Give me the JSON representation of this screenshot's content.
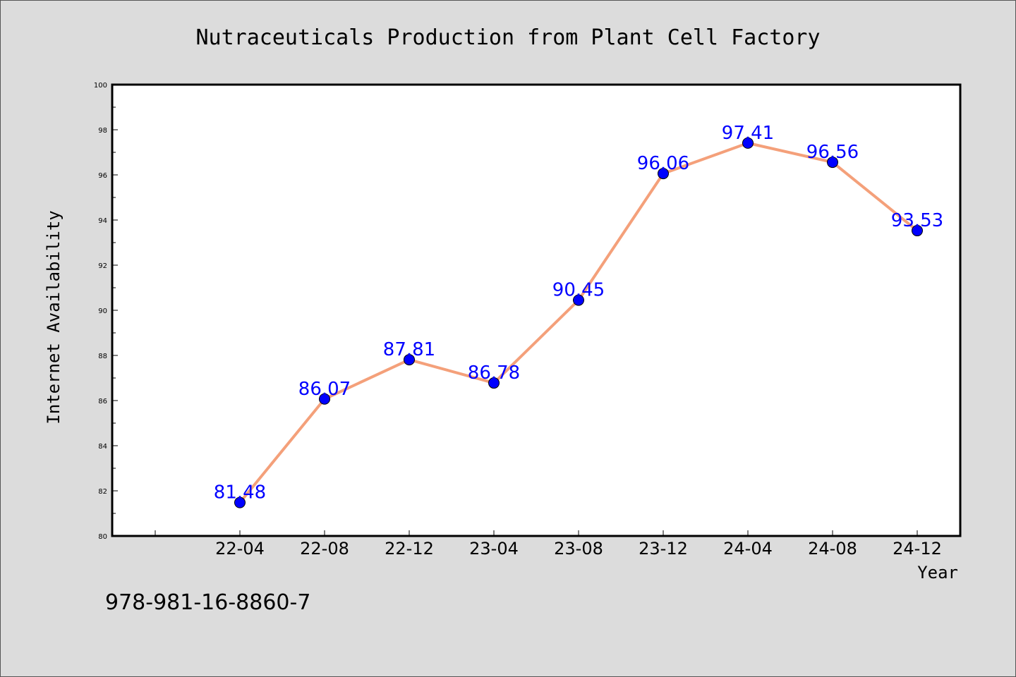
{
  "chart_data": {
    "type": "line",
    "title": "Nutraceuticals Production from Plant Cell Factory",
    "xlabel": "Year",
    "ylabel": "Internet Availability",
    "categories": [
      "22-04",
      "22-08",
      "22-12",
      "23-04",
      "23-08",
      "23-12",
      "24-04",
      "24-08",
      "24-12"
    ],
    "series": [
      {
        "values": [
          81.48,
          86.07,
          87.81,
          86.78,
          90.45,
          96.06,
          97.41,
          96.56,
          93.53
        ]
      }
    ],
    "data_labels": [
      "81.48",
      "86.07",
      "87.81",
      "86.78",
      "90.45",
      "96.06",
      "97.41",
      "96.56",
      "93.53"
    ],
    "ylim": [
      80,
      100
    ],
    "yticks": [
      80,
      82,
      84,
      86,
      88,
      90,
      92,
      94,
      96,
      98,
      100
    ],
    "grid": false,
    "line_color": "#f4a07a",
    "marker_color": "#0000ff",
    "label_color": "#0000ff",
    "background": "#dcdcdc",
    "plot_background": "#ffffff"
  },
  "footer": {
    "isbn": "978-981-16-8860-7"
  }
}
